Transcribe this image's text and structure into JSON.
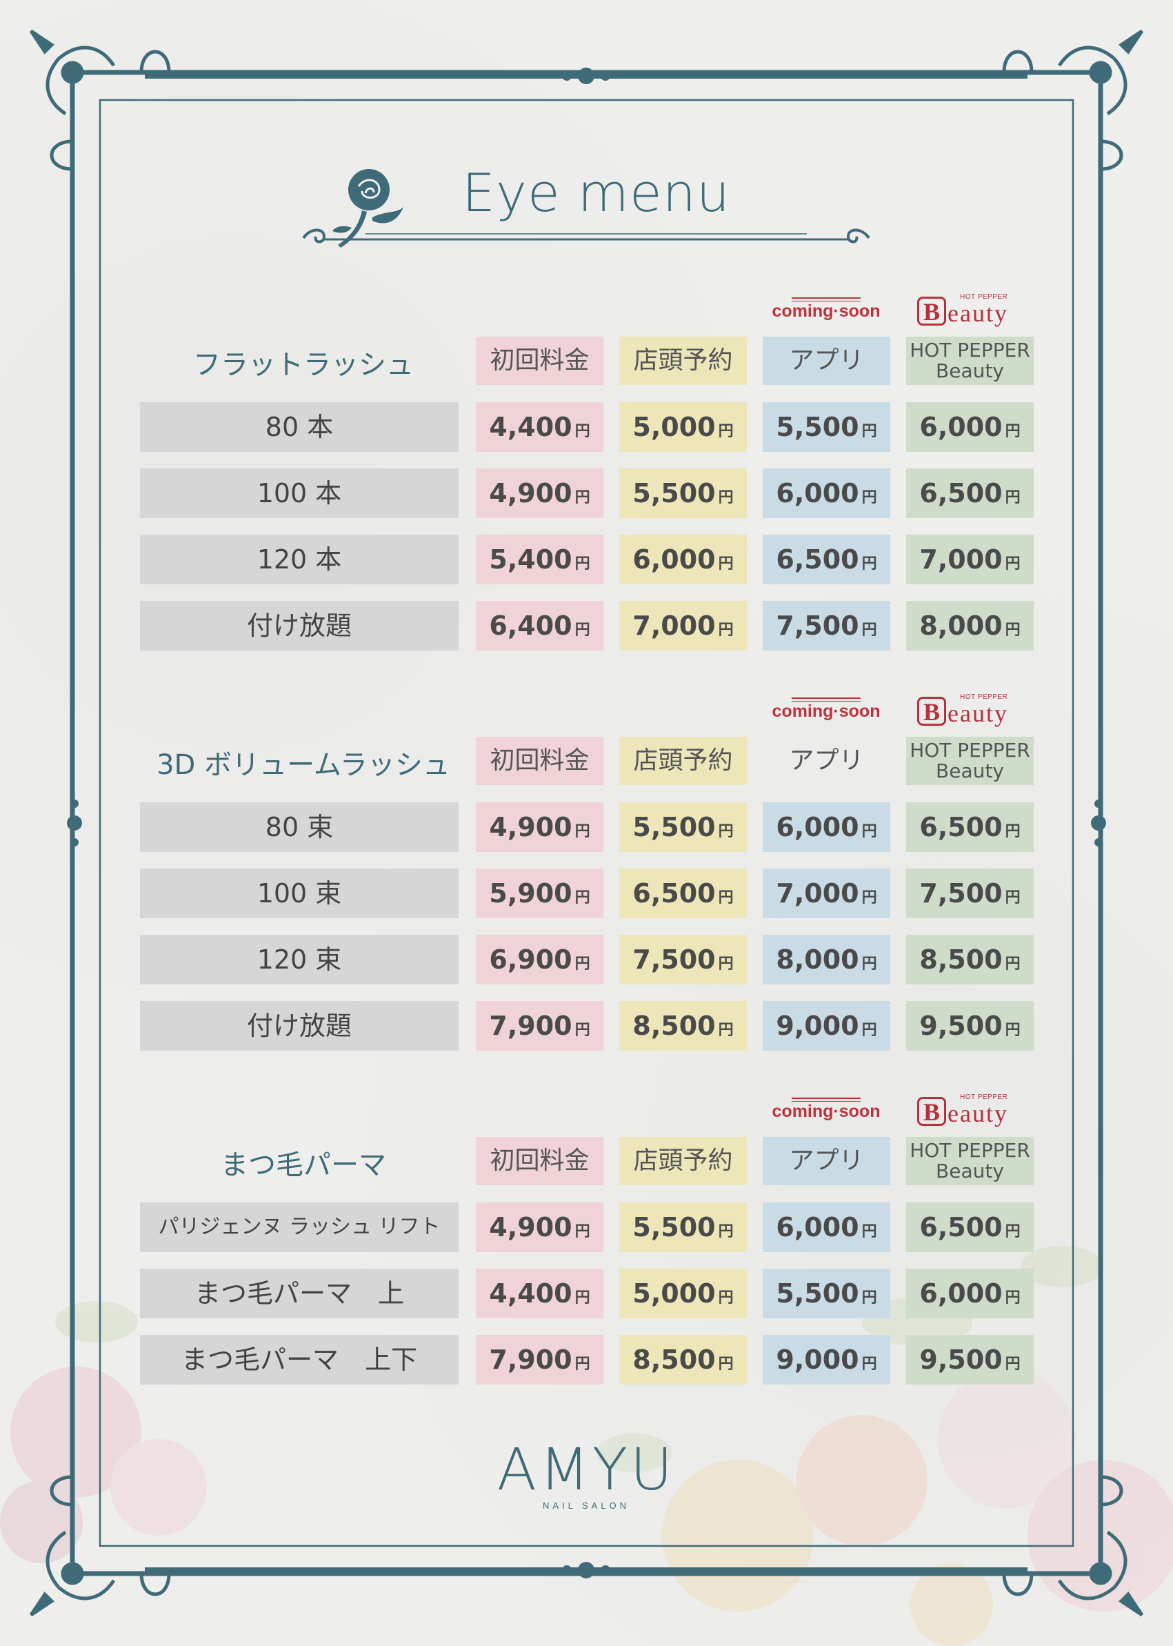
{
  "header": {
    "title": "Eye menu"
  },
  "columns": {
    "first": "初回料金",
    "store": "店頭予約",
    "app": "アプリ",
    "hpb_line1": "HOT PEPPER",
    "hpb_line2": "Beauty"
  },
  "badges": {
    "coming_soon": "coming·soon",
    "hpb_small": "HOT PEPPER",
    "hpb_b": "B",
    "hpb_word": "eauty"
  },
  "yen": "円",
  "sections": [
    {
      "title": "フラットラッシュ",
      "app_highlight": true,
      "rows": [
        {
          "label": "80 本",
          "prices": [
            "4,400",
            "5,000",
            "5,500",
            "6,000"
          ]
        },
        {
          "label": "100 本",
          "prices": [
            "4,900",
            "5,500",
            "6,000",
            "6,500"
          ]
        },
        {
          "label": "120 本",
          "prices": [
            "5,400",
            "6,000",
            "6,500",
            "7,000"
          ]
        },
        {
          "label": "付け放題",
          "prices": [
            "6,400",
            "7,000",
            "7,500",
            "8,000"
          ]
        }
      ]
    },
    {
      "title": "3D ボリュームラッシュ",
      "app_highlight": false,
      "rows": [
        {
          "label": "80 束",
          "prices": [
            "4,900",
            "5,500",
            "6,000",
            "6,500"
          ]
        },
        {
          "label": "100 束",
          "prices": [
            "5,900",
            "6,500",
            "7,000",
            "7,500"
          ]
        },
        {
          "label": "120 束",
          "prices": [
            "6,900",
            "7,500",
            "8,000",
            "8,500"
          ]
        },
        {
          "label": "付け放題",
          "prices": [
            "7,900",
            "8,500",
            "9,000",
            "9,500"
          ]
        }
      ]
    },
    {
      "title": "まつ毛パーマ",
      "app_highlight": true,
      "rows": [
        {
          "label": "パリジェンヌ ラッシュ リフト",
          "prices": [
            "4,900",
            "5,500",
            "6,000",
            "6,500"
          ]
        },
        {
          "label": "まつ毛パーマ　上",
          "prices": [
            "4,400",
            "5,000",
            "5,500",
            "6,000"
          ]
        },
        {
          "label": "まつ毛パーマ　上下",
          "prices": [
            "7,900",
            "8,500",
            "9,000",
            "9,500"
          ]
        }
      ]
    }
  ],
  "footer": {
    "logo": "AMYU",
    "subtitle": "NAIL SALON"
  },
  "colors": {
    "accent": "#3f6b78",
    "first": "#f0d3d7",
    "store": "#ece6b9",
    "app": "#c9dce6",
    "hpb": "#cfdcca",
    "label": "#d6d6d6",
    "brand_red": "#c0313c"
  }
}
